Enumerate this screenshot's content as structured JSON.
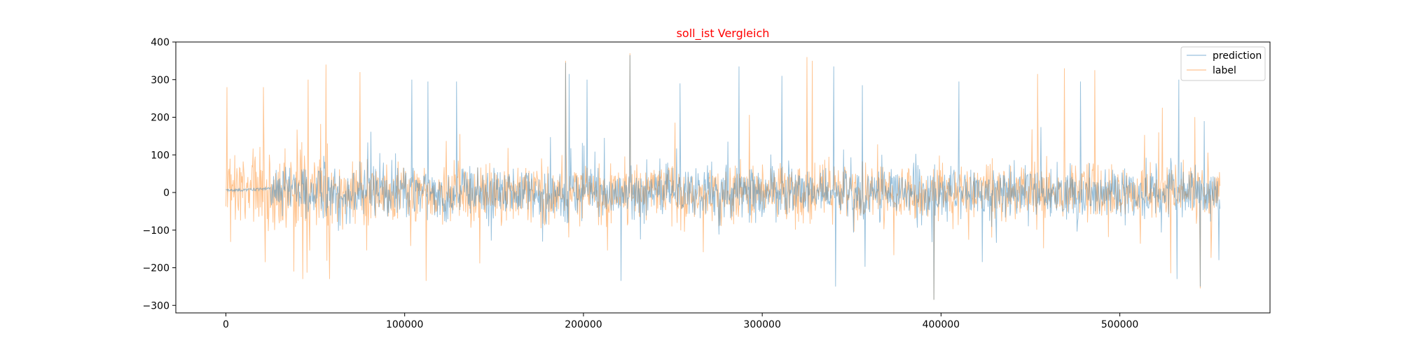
{
  "chart_data": {
    "type": "line",
    "title": "soll_ist Vergleich",
    "title_color": "#ff0000",
    "xlabel": "",
    "ylabel": "",
    "xlim": [
      -28000,
      584000
    ],
    "ylim": [
      -320,
      400
    ],
    "xticks": [
      0,
      100000,
      200000,
      300000,
      400000,
      500000
    ],
    "xtick_labels": [
      "0",
      "100000",
      "200000",
      "300000",
      "400000",
      "500000"
    ],
    "yticks": [
      -300,
      -200,
      -100,
      0,
      100,
      200,
      300,
      400
    ],
    "ytick_labels": [
      "−300",
      "−200",
      "−100",
      "0",
      "100",
      "200",
      "300",
      "400"
    ],
    "grid": false,
    "legend": {
      "placement": "top-right"
    },
    "x_range": [
      0,
      556000
    ],
    "series": [
      {
        "name": "prediction",
        "color": "#1f77b4",
        "alpha": 0.45,
        "typical_amplitude": 40,
        "notable_peaks": [
          {
            "x": 104000,
            "y": 300
          },
          {
            "x": 113000,
            "y": 295
          },
          {
            "x": 129000,
            "y": 295
          },
          {
            "x": 190000,
            "y": 345
          },
          {
            "x": 192000,
            "y": 315
          },
          {
            "x": 202000,
            "y": 300
          },
          {
            "x": 226000,
            "y": 365
          },
          {
            "x": 254000,
            "y": 290
          },
          {
            "x": 287000,
            "y": 335
          },
          {
            "x": 311000,
            "y": 310
          },
          {
            "x": 340000,
            "y": 335
          },
          {
            "x": 356000,
            "y": 285
          },
          {
            "x": 410000,
            "y": 295
          },
          {
            "x": 478000,
            "y": 295
          },
          {
            "x": 533000,
            "y": 300
          }
        ],
        "notable_troughs": [
          {
            "x": 221000,
            "y": -235
          },
          {
            "x": 341000,
            "y": -250
          },
          {
            "x": 396000,
            "y": -285
          },
          {
            "x": 532000,
            "y": -230
          },
          {
            "x": 545000,
            "y": -250
          }
        ]
      },
      {
        "name": "label",
        "color": "#ff7f0e",
        "alpha": 0.45,
        "typical_amplitude": 45,
        "notable_peaks": [
          {
            "x": 600,
            "y": 280
          },
          {
            "x": 21000,
            "y": 280
          },
          {
            "x": 46000,
            "y": 300
          },
          {
            "x": 56000,
            "y": 340
          },
          {
            "x": 75000,
            "y": 320
          },
          {
            "x": 190000,
            "y": 350
          },
          {
            "x": 226000,
            "y": 370
          },
          {
            "x": 325000,
            "y": 360
          },
          {
            "x": 328000,
            "y": 350
          },
          {
            "x": 454000,
            "y": 315
          },
          {
            "x": 469000,
            "y": 330
          },
          {
            "x": 486000,
            "y": 325
          }
        ],
        "notable_troughs": [
          {
            "x": 22000,
            "y": -185
          },
          {
            "x": 38000,
            "y": -210
          },
          {
            "x": 43000,
            "y": -230
          },
          {
            "x": 58000,
            "y": -230
          },
          {
            "x": 112000,
            "y": -235
          },
          {
            "x": 396000,
            "y": -285
          },
          {
            "x": 545000,
            "y": -255
          }
        ]
      }
    ]
  }
}
